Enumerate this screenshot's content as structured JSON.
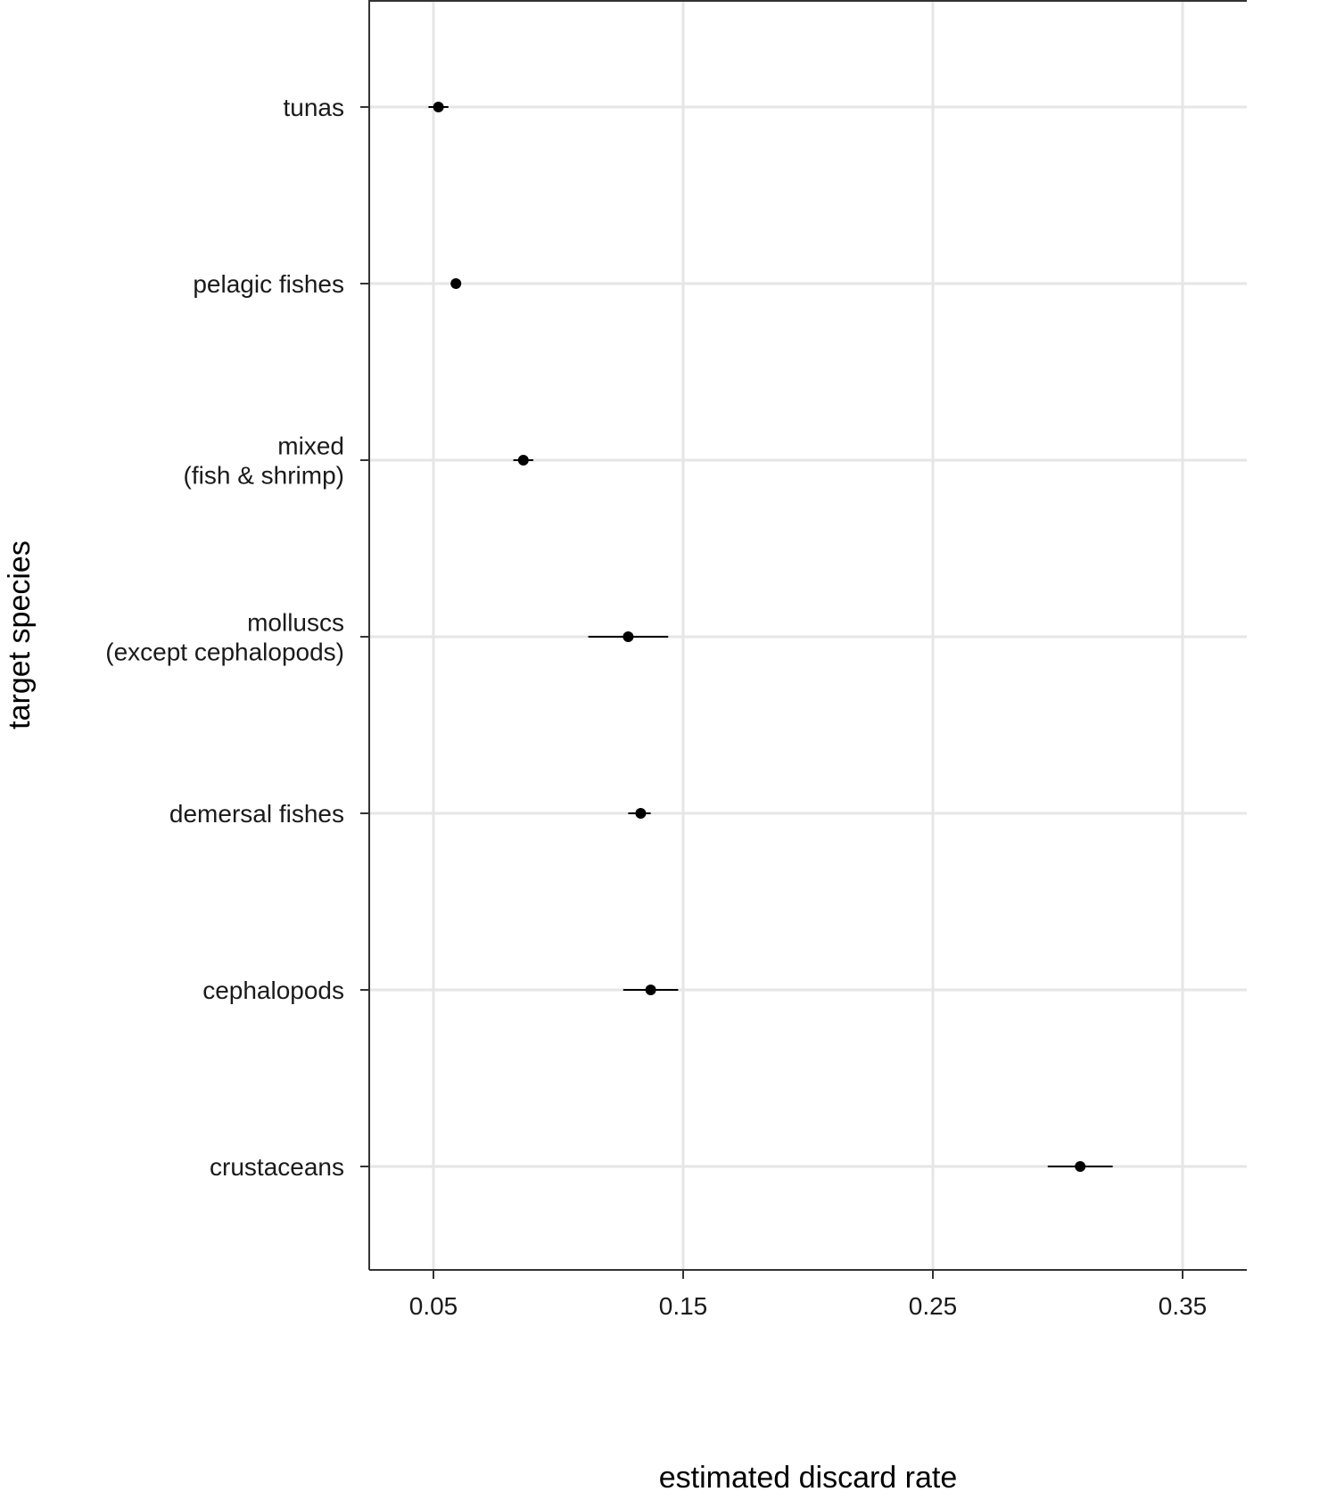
{
  "chart_data": {
    "type": "scatter",
    "xlabel": "estimated discard rate",
    "ylabel": "target species",
    "xlim": [
      0.025,
      0.375
    ],
    "xticks": [
      "0.05",
      "0.15",
      "0.25",
      "0.35"
    ],
    "grid": true,
    "categories": [
      {
        "label": [
          "tunas"
        ],
        "value": 0.052,
        "lower": 0.048,
        "upper": 0.056
      },
      {
        "label": [
          "pelagic fishes"
        ],
        "value": 0.059,
        "lower": 0.059,
        "upper": 0.059
      },
      {
        "label": [
          "mixed",
          "(fish & shrimp)"
        ],
        "value": 0.086,
        "lower": 0.082,
        "upper": 0.09
      },
      {
        "label": [
          "molluscs",
          "(except cephalopods)"
        ],
        "value": 0.128,
        "lower": 0.112,
        "upper": 0.144
      },
      {
        "label": [
          "demersal fishes"
        ],
        "value": 0.133,
        "lower": 0.128,
        "upper": 0.137
      },
      {
        "label": [
          "cephalopods"
        ],
        "value": 0.137,
        "lower": 0.126,
        "upper": 0.148
      },
      {
        "label": [
          "crustaceans"
        ],
        "value": 0.309,
        "lower": 0.296,
        "upper": 0.322
      }
    ]
  }
}
